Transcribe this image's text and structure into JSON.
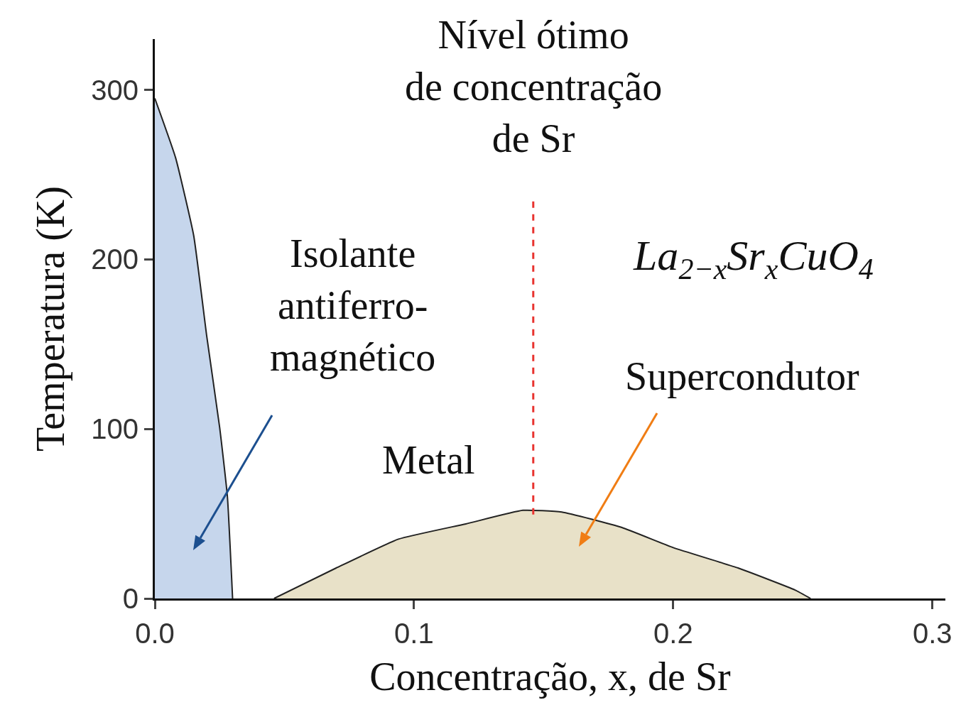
{
  "chart_data": {
    "type": "area",
    "xlabel": "Concentração, x, de Sr",
    "ylabel": "Temperatura (K)",
    "xlim": [
      0,
      0.305
    ],
    "xticks": [
      {
        "value": 0,
        "label": "0.0"
      },
      0.1,
      0.2,
      0.3
    ],
    "ylim": [
      0,
      330
    ],
    "yticks": [
      0,
      100,
      200,
      300
    ],
    "series": [
      {
        "color": "#c6d6ec",
        "x": [
          0,
          0.008,
          0.015,
          0.02,
          0.025,
          0.028,
          0.03
        ],
        "values": [
          295,
          260,
          214,
          155,
          101,
          60,
          0
        ]
      },
      {
        "color": "#e8e1c8",
        "x": [
          0.046,
          0.07,
          0.094,
          0.12,
          0.142,
          0.157,
          0.18,
          0.2,
          0.225,
          0.247,
          0.253
        ],
        "values": [
          0,
          18,
          35,
          44,
          52,
          51,
          42,
          30,
          18,
          5,
          0
        ]
      }
    ],
    "ref_lines": [
      {
        "axis": "x",
        "value": 0.146,
        "label": "Nível ótimo\nde concentração\nde Sr",
        "color": "#e8332f",
        "line_style": "dashed"
      }
    ],
    "annotations": [
      "Isolante\nantiferro-\nmagnético",
      "Supercondutor",
      "Metal",
      "La$_{2−x}$Sr$_{x}$CuO$_{4}$"
    ],
    "grid": false
  }
}
